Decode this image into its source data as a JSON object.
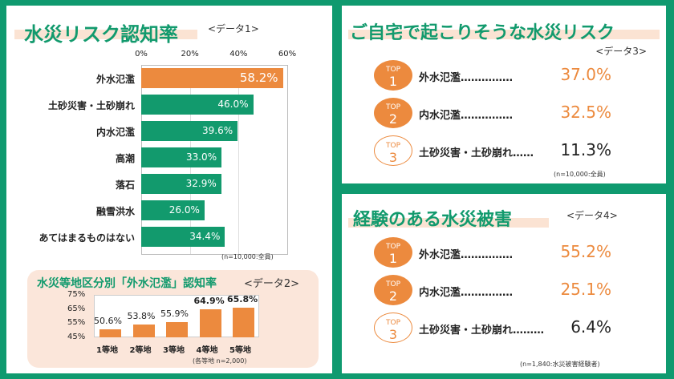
{
  "left": {
    "title": "水災リスク認知率",
    "tag": "<データ1>",
    "note": "(n=10,000:全員)",
    "chart_data": {
      "type": "bar",
      "orientation": "horizontal",
      "xlim": [
        0,
        60
      ],
      "ticks": [
        "0%",
        "20%",
        "40%",
        "60%"
      ],
      "categories": [
        "外水氾濫",
        "土砂災害・土砂崩れ",
        "内水氾濫",
        "高潮",
        "落石",
        "融雪洪水",
        "あてはまるものはない"
      ],
      "values": [
        58.2,
        46.0,
        39.6,
        33.0,
        32.9,
        26.0,
        34.4
      ],
      "labels": [
        "58.2%",
        "46.0%",
        "39.6%",
        "33.0%",
        "32.9%",
        "26.0%",
        "34.4%"
      ],
      "highlight_color": "#ec8a3e",
      "bar_color": "#129a6d",
      "grid": true
    }
  },
  "sub": {
    "title": "水災等地区分別「外水氾濫」認知率",
    "tag": "<データ2>",
    "note": "(各等地 n=2,000)",
    "chart_data": {
      "type": "bar",
      "ylim": [
        45,
        75
      ],
      "yticks": [
        "75%",
        "65%",
        "55%",
        "45%"
      ],
      "categories": [
        "1等地",
        "2等地",
        "3等地",
        "4等地",
        "5等地"
      ],
      "values": [
        50.6,
        53.8,
        55.9,
        64.9,
        65.8
      ],
      "labels": [
        "50.6%",
        "53.8%",
        "55.9%",
        "64.9%",
        "65.8%"
      ],
      "bar_color": "#ec8a3e"
    }
  },
  "risk": {
    "title": "ご自宅で起こりそうな水災リスク",
    "tag": "<データ3>",
    "note": "(n=10,000:全員)",
    "items": [
      {
        "top": "TOP",
        "rank": "1",
        "label": "外水氾濫……………",
        "value": "37.0%"
      },
      {
        "top": "TOP",
        "rank": "2",
        "label": "内水氾濫……………",
        "value": "32.5%"
      },
      {
        "top": "TOP",
        "rank": "3",
        "label": "土砂災害・土砂崩れ……",
        "value": "11.3%"
      }
    ]
  },
  "damage": {
    "title": "経験のある水災被害",
    "tag": "<データ4>",
    "note": "(n=1,840:水災被害経験者)",
    "items": [
      {
        "top": "TOP",
        "rank": "1",
        "label": "外水氾濫……………",
        "value": "55.2%"
      },
      {
        "top": "TOP",
        "rank": "2",
        "label": "内水氾濫……………",
        "value": "25.1%"
      },
      {
        "top": "TOP",
        "rank": "3",
        "label": "土砂災害・土砂崩れ………",
        "value": "6.4%"
      }
    ]
  }
}
